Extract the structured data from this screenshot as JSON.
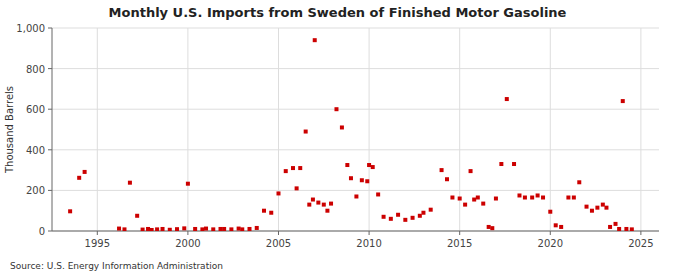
{
  "chart_data": {
    "type": "scatter",
    "title": "Monthly U.S. Imports from Sweden of Finished Motor Gasoline",
    "ylabel": "Thousand Barrels",
    "source": "Source: U.S. Energy Information Administration",
    "color": "#cc0000",
    "marker": "square",
    "grid": true,
    "xlim": [
      1992.5,
      2026.0
    ],
    "ylim": [
      0,
      1000
    ],
    "xticks": [
      1995,
      2000,
      2005,
      2010,
      2015,
      2020,
      2025
    ],
    "yticks": [
      0,
      200,
      400,
      600,
      800,
      {
        "value": 1000,
        "label": "1,000"
      }
    ],
    "x": [
      1993.5,
      1994.0,
      1994.3,
      1996.2,
      1996.5,
      1996.8,
      1997.2,
      1997.5,
      1997.8,
      1998.0,
      1998.3,
      1998.6,
      1999.0,
      1999.4,
      1999.8,
      2000.0,
      2000.4,
      2000.8,
      2001.0,
      2001.4,
      2001.8,
      2002.0,
      2002.4,
      2002.8,
      2003.0,
      2003.4,
      2003.8,
      2004.2,
      2004.6,
      2005.0,
      2005.4,
      2005.8,
      2006.0,
      2006.2,
      2006.5,
      2006.7,
      2006.9,
      2007.0,
      2007.2,
      2007.5,
      2007.7,
      2007.9,
      2008.2,
      2008.5,
      2008.8,
      2009.0,
      2009.3,
      2009.6,
      2009.9,
      2010.0,
      2010.2,
      2010.5,
      2010.8,
      2011.2,
      2011.6,
      2012.0,
      2012.4,
      2012.8,
      2013.0,
      2013.4,
      2014.0,
      2014.3,
      2014.6,
      2015.0,
      2015.3,
      2015.6,
      2015.8,
      2016.0,
      2016.3,
      2016.6,
      2016.8,
      2017.0,
      2017.3,
      2017.6,
      2018.0,
      2018.3,
      2018.6,
      2019.0,
      2019.3,
      2019.6,
      2020.0,
      2020.3,
      2020.6,
      2021.0,
      2021.3,
      2021.6,
      2022.0,
      2022.3,
      2022.6,
      2022.9,
      2023.1,
      2023.3,
      2023.6,
      2023.8,
      2024.0,
      2024.2,
      2024.5
    ],
    "values": [
      97,
      262,
      291,
      12,
      8,
      238,
      75,
      7,
      10,
      5,
      8,
      10,
      6,
      9,
      13,
      233,
      10,
      8,
      12,
      8,
      10,
      10,
      8,
      12,
      8,
      10,
      15,
      100,
      90,
      185,
      295,
      310,
      210,
      310,
      490,
      130,
      155,
      940,
      140,
      130,
      100,
      135,
      600,
      510,
      325,
      260,
      170,
      250,
      245,
      325,
      315,
      180,
      70,
      60,
      80,
      55,
      65,
      75,
      90,
      105,
      300,
      255,
      165,
      160,
      130,
      295,
      155,
      165,
      135,
      20,
      14,
      160,
      330,
      650,
      330,
      175,
      165,
      165,
      175,
      165,
      95,
      28,
      20,
      165,
      165,
      240,
      120,
      100,
      115,
      130,
      115,
      20,
      35,
      10,
      640,
      10,
      8
    ]
  }
}
